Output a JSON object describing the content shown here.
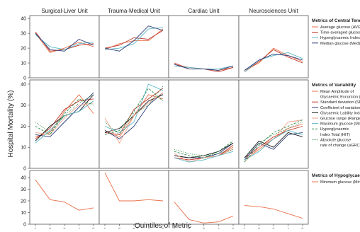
{
  "figure": {
    "ylabel": "Hospital Mortality (%)",
    "xlabel": "Quintiles of Metric"
  },
  "chart_data": {
    "type": "line",
    "units": [
      "Surgical-Liver Unit",
      "Trauma-Medical Unit",
      "Cardiac Unit",
      "Neurosciences Unit"
    ],
    "x": [
      1,
      2,
      3,
      4,
      5
    ],
    "x_ticks": [
      "1",
      "2",
      "3",
      "4",
      "5"
    ],
    "grid": false,
    "rows": [
      {
        "legend_title": "Metrics of Central Tendency",
        "ylim": [
          0,
          42
        ],
        "yticks": [
          0,
          10,
          20,
          30,
          40
        ],
        "series": [
          {
            "name": "Average glucose (AVG)",
            "color": "#e8704a",
            "dash": "solid",
            "values": [
              [
                30,
                17,
                20,
                24,
                21
              ],
              [
                19,
                23,
                25,
                25,
                33
              ],
              [
                9,
                7,
                6,
                5,
                7
              ],
              [
                5,
                10,
                20,
                15,
                11
              ]
            ]
          },
          {
            "name": "Time-averaged glucose (TAG)",
            "color": "#c0392b",
            "dash": "solid",
            "values": [
              [
                31,
                18,
                19,
                22,
                23
              ],
              [
                20,
                22,
                27,
                26,
                32
              ],
              [
                10,
                6,
                6,
                4,
                7
              ],
              [
                4,
                11,
                19,
                14,
                10
              ]
            ]
          },
          {
            "name": "Hyperglycaemic Index (HI)",
            "color": "#5cb8c4",
            "dash": "solid",
            "values": [
              [
                29,
                21,
                19,
                23,
                24
              ],
              [
                19,
                20,
                23,
                33,
                34
              ],
              [
                8,
                7,
                6,
                6,
                8
              ],
              [
                4,
                12,
                15,
                17,
                13
              ]
            ]
          },
          {
            "name": "Median glucose (Med)",
            "color": "#2c3e7a",
            "dash": "solid",
            "values": [
              [
                30,
                19,
                18,
                26,
                22
              ],
              [
                20,
                18,
                25,
                35,
                32
              ],
              [
                9,
                6,
                6,
                5,
                8
              ],
              [
                5,
                12,
                16,
                15,
                12
              ]
            ]
          }
        ]
      },
      {
        "legend_title": "Metrics of Variability",
        "ylim": [
          0,
          42
        ],
        "yticks": [
          0,
          10,
          20,
          30,
          40
        ],
        "series": [
          {
            "name": "Mean Amplitude of Glycaemic Excursion (MAGE)",
            "color": "#e8704a",
            "dash": "solid",
            "values": [
              [
                15,
                17,
                27,
                35,
                26
              ],
              [
                18,
                15,
                25,
                35,
                33
              ],
              [
                5,
                4,
                5,
                6,
                10
              ],
              [
                4,
                9,
                14,
                19,
                21
              ]
            ]
          },
          {
            "name": "Standard deviation (SD)",
            "color": "#c0392b",
            "dash": "solid",
            "values": [
              [
                14,
                19,
                28,
                32,
                33
              ],
              [
                17,
                16,
                28,
                33,
                38
              ],
              [
                5,
                4,
                5,
                6,
                11
              ],
              [
                5,
                10,
                15,
                18,
                20
              ]
            ]
          },
          {
            "name": "Coefficient of variation (CV)",
            "color": "#2c3e7a",
            "dash": "solid",
            "values": [
              [
                16,
                15,
                22,
                29,
                36
              ],
              [
                18,
                14,
                20,
                30,
                36
              ],
              [
                6,
                5,
                5,
                7,
                12
              ],
              [
                4,
                12,
                9,
                16,
                17
              ]
            ]
          },
          {
            "name": "Glycaemic Lability Index (GLI)",
            "color": "#1a1a1a",
            "dash": "solid",
            "values": [
              [
                13,
                20,
                25,
                27,
                35
              ],
              [
                17,
                19,
                25,
                32,
                35
              ],
              [
                6,
                5,
                6,
                8,
                12
              ],
              [
                5,
                13,
                10,
                17,
                15
              ]
            ]
          },
          {
            "name": "Glucose range (Range)",
            "color": "#f2a58e",
            "dash": "solid",
            "values": [
              [
                17,
                16,
                24,
                30,
                31
              ],
              [
                24,
                12,
                25,
                31,
                36
              ],
              [
                7,
                3,
                5,
                6,
                9
              ],
              [
                3,
                10,
                14,
                22,
                23
              ]
            ]
          },
          {
            "name": "Maximum glucose (Max)",
            "color": "#5cb8c4",
            "dash": "solid",
            "values": [
              [
                12,
                18,
                25,
                27,
                32
              ],
              [
                20,
                17,
                22,
                40,
                37
              ],
              [
                5,
                3,
                4,
                6,
                8
              ],
              [
                4,
                8,
                14,
                18,
                16
              ]
            ]
          },
          {
            "name": "Hyperglycaemic Index Total (HIT)",
            "color": "#2d8a4a",
            "dash": "dashed",
            "values": [
              [
                20,
                16,
                26,
                33,
                30
              ],
              [
                16,
                18,
                27,
                38,
                32
              ],
              [
                8,
                6,
                5,
                8,
                13
              ],
              [
                3,
                11,
                17,
                20,
                23
              ]
            ]
          },
          {
            "name": "Absolute glucose rate of change (aGRC)",
            "color": "#2d8a4a",
            "dash": "dotted",
            "values": [
              [
                22,
                17,
                25,
                31,
                35
              ],
              [
                22,
                16,
                26,
                30,
                39
              ],
              [
                9,
                7,
                6,
                7,
                9
              ],
              [
                5,
                12,
                16,
                19,
                22
              ]
            ]
          }
        ]
      },
      {
        "legend_title": "Metrics of Hypoglycaemia",
        "ylim": [
          0,
          46
        ],
        "yticks": [
          0,
          10,
          20,
          30,
          40
        ],
        "series": [
          {
            "name": "Minimum glucose (Min)",
            "color": "#e8704a",
            "dash": "solid",
            "values": [
              [
                38,
                21,
                19,
                12,
                14
              ],
              [
                44,
                20,
                20,
                21,
                20
              ],
              [
                19,
                4,
                1,
                2,
                7
              ],
              [
                16,
                15,
                13,
                9,
                5
              ]
            ]
          }
        ]
      }
    ]
  },
  "legend_lines": [
    [
      [
        "Average glucose (AVG)"
      ],
      [
        "Time-averaged glucose (TAG)"
      ],
      [
        "Hyperglycaemic Index (HI)"
      ],
      [
        "Median glucose (Med)"
      ]
    ],
    [
      [
        "Mean Amplitude of",
        "Glycaemic Excursion (MAGE)"
      ],
      [
        "Standard deviation (SD)"
      ],
      [
        "Coefficient of variation (CV)"
      ],
      [
        "Glycaemic Lability Index (GLI)"
      ],
      [
        "Glucose range (Range)"
      ],
      [
        "Maximum glucose (Max)"
      ],
      [
        "Hyperglycaemic",
        "Index Total (HIT)"
      ],
      [
        "Absolute glucose",
        "rate of change (aGRC)"
      ]
    ],
    [
      [
        "Minimum glucose (Min)"
      ]
    ]
  ]
}
